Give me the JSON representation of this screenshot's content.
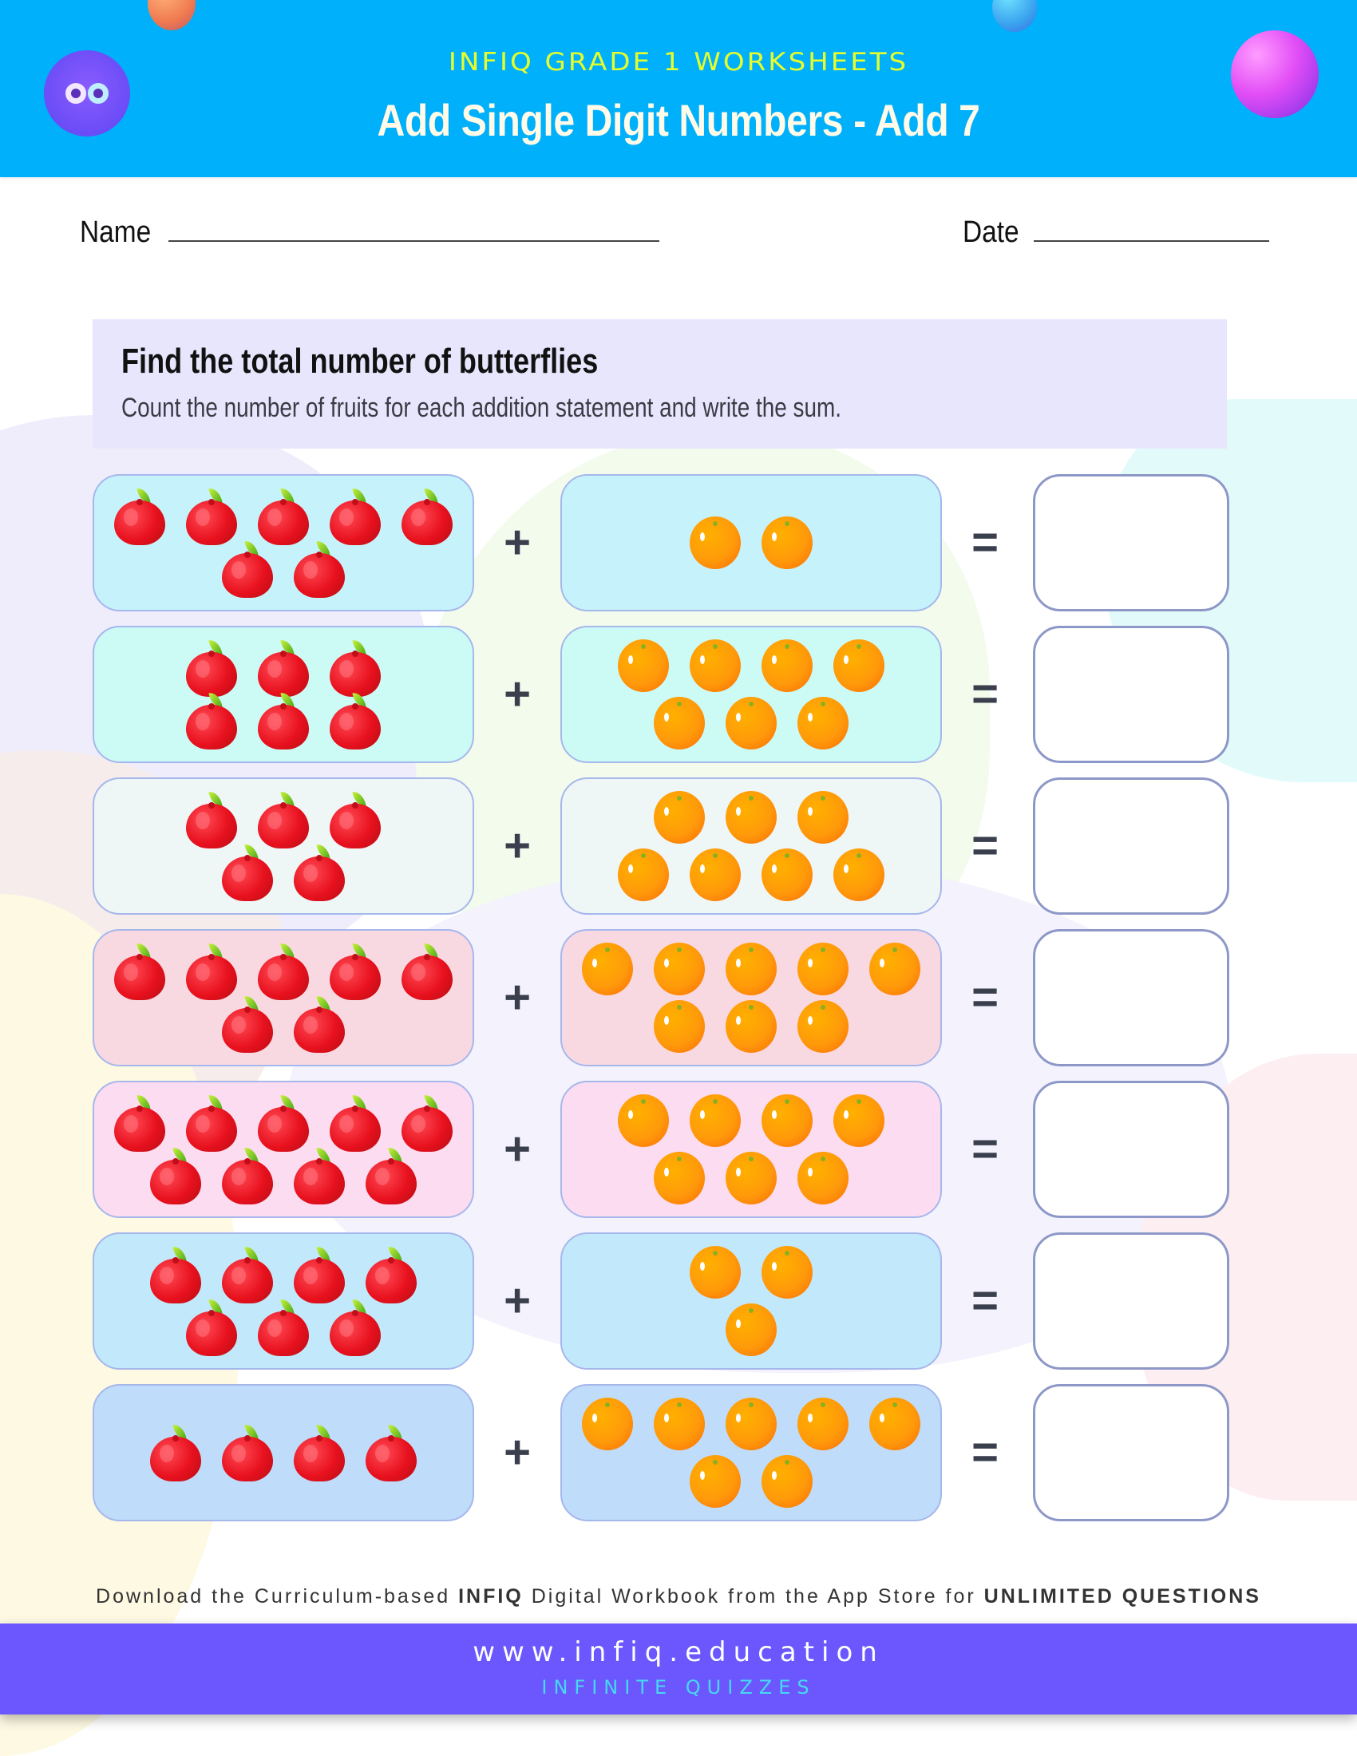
{
  "header": {
    "kicker": "INFIQ GRADE 1 WORKSHEETS",
    "title": "Add Single Digit Numbers - Add 7",
    "logo_icon": "infiq-logo-icon",
    "bg_color": "#00b0fb"
  },
  "form": {
    "name_label": "Name",
    "date_label": "Date"
  },
  "instructions": {
    "title": "Find the total number of butterflies",
    "subtitle": "Count the number of fruits for each addition statement and write the sum."
  },
  "operators": {
    "plus": "+",
    "equals": "="
  },
  "problems": [
    {
      "apples": [
        5,
        2
      ],
      "oranges": [
        2
      ],
      "bg": "#c6f3fb"
    },
    {
      "apples": [
        3,
        3
      ],
      "oranges": [
        4,
        3
      ],
      "bg": "#ccfbf6"
    },
    {
      "apples": [
        3,
        2
      ],
      "oranges": [
        3,
        4
      ],
      "bg": "#eef6f6"
    },
    {
      "apples": [
        5,
        2
      ],
      "oranges": [
        5,
        3
      ],
      "bg": "#f8d9e1"
    },
    {
      "apples": [
        5,
        4
      ],
      "oranges": [
        4,
        3
      ],
      "bg": "#fcdcf0"
    },
    {
      "apples": [
        4,
        3
      ],
      "oranges": [
        2,
        1
      ],
      "bg": "#c2e9fb"
    },
    {
      "apples": [
        4
      ],
      "oranges": [
        5,
        2
      ],
      "bg": "#bfdcfa"
    }
  ],
  "problem_totals": [
    {
      "apples": 7,
      "oranges": 2
    },
    {
      "apples": 6,
      "oranges": 7
    },
    {
      "apples": 5,
      "oranges": 7
    },
    {
      "apples": 7,
      "oranges": 8
    },
    {
      "apples": 9,
      "oranges": 7
    },
    {
      "apples": 7,
      "oranges": 3
    },
    {
      "apples": 4,
      "oranges": 7
    }
  ],
  "footer": {
    "promo_prefix": "Download the Curriculum-based ",
    "promo_brand": "INFIQ",
    "promo_middle": " Digital Workbook from the App Store for ",
    "promo_emphasis": "UNLIMITED QUESTIONS",
    "url": "www.infiq.education",
    "tagline": "INFINITE QUIZZES",
    "bg_color": "#6b57fd"
  }
}
